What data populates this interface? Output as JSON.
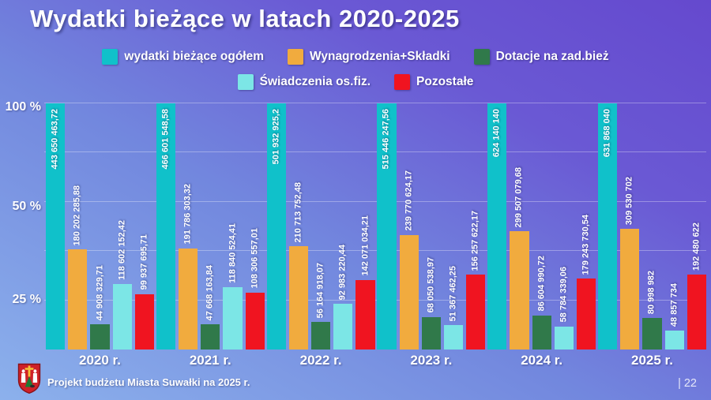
{
  "title": "Wydatki bieżące w latach 2020-2025",
  "footer": {
    "text": "Projekt budżetu Miasta Suwałki na 2025 r.",
    "page_label": "| 22",
    "crest_icon": "suwalki-coat-of-arms"
  },
  "colors": {
    "background_light": "#8cb1ec",
    "background_dark": "#6549ce",
    "total": "#10c1ca",
    "wages": "#f1ab3e",
    "grants": "#30794a",
    "benefits": "#7ce6e6",
    "other": "#f01420"
  },
  "chart_data": {
    "type": "bar",
    "title": "Wydatki bieżące w latach 2020-2025",
    "categories": [
      "2020 r.",
      "2021 r.",
      "2022 r.",
      "2023 r.",
      "2024 r.",
      "2025 r."
    ],
    "y_tick_labels": [
      "100 %",
      "50 %",
      "25 %"
    ],
    "grid": "horizontal, faint white lines each 20% of plot height",
    "legend_position": "top, two centered rows (3 + 2 items)",
    "scaling_note": "each year's bars are percentages of that year's total; 'wydatki bieżące ogółem' bar = 100% height",
    "series": [
      {
        "name": "wydatki bieżące ogółem",
        "key": "total",
        "color": "#10c1ca",
        "label_placement": "inside-top",
        "values": [
          443650463.72,
          466601548.58,
          501932925.2,
          515446247.56,
          624140140,
          631868040
        ],
        "labels": [
          "443 650 463,72",
          "466 601 548,58",
          "501 932 925,2",
          "515 446 247,56",
          "624 140 140",
          "631 868 040"
        ]
      },
      {
        "name": "Wynagrodzenia+Składki",
        "key": "wages",
        "color": "#f1ab3e",
        "label_placement": "above",
        "values": [
          180202285.88,
          191786303.32,
          210713752.48,
          239770624.17,
          299507079.68,
          309530702
        ],
        "labels": [
          "180 202 285,88",
          "191 786 303,32",
          "210 713 752,48",
          "239 770 624,17",
          "299 507 079,68",
          "309 530 702"
        ]
      },
      {
        "name": "Dotacje na zad.bież",
        "key": "grants",
        "color": "#30794a",
        "label_placement": "above",
        "values": [
          44908329.71,
          47668163.84,
          56164918.07,
          68050538.97,
          86604990.72,
          80998982
        ],
        "labels": [
          "44 908 329,71",
          "47 668 163,84",
          "56 164 918,07",
          "68 050 538,97",
          "86 604 990,72",
          "80 998 982"
        ]
      },
      {
        "name": "Świadczenia os.fiz.",
        "key": "benefits",
        "color": "#7ce6e6",
        "label_placement": "above",
        "values": [
          118602152.42,
          118840524.41,
          92983220.44,
          51367462.25,
          58784339.06,
          48857734
        ],
        "labels": [
          "118 602 152,42",
          "118 840 524,41",
          "92 983 220,44",
          "51 367 462,25",
          "58 784 339,06",
          "48 857 734"
        ]
      },
      {
        "name": "Pozostałe",
        "key": "other",
        "color": "#f01420",
        "label_placement": "above",
        "values": [
          99937695.71,
          108306557.01,
          142071034.21,
          156257622.17,
          179243730.54,
          192480622
        ],
        "labels": [
          "99 937 695,71",
          "108 306 557,01",
          "142 071 034,21",
          "156 257 622,17",
          "179 243 730,54",
          "192 480 622"
        ]
      }
    ]
  }
}
